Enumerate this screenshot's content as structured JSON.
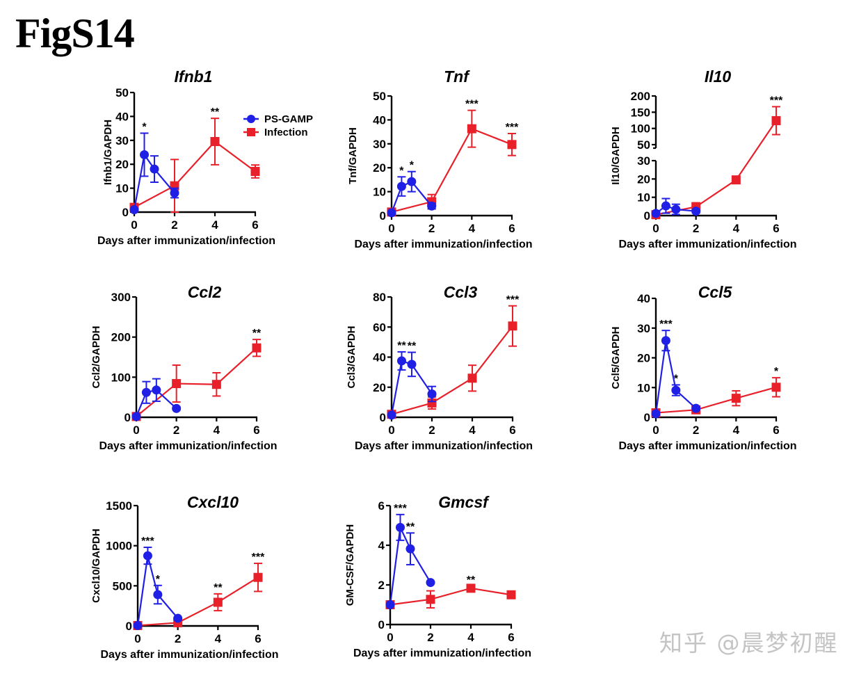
{
  "figure_title": "FigS14",
  "watermark": "知乎 @晨梦初醒",
  "colors": {
    "ps_gamp": "#1f1fe6",
    "infection": "#e8202a",
    "axis": "#000000"
  },
  "legend": {
    "placement": "top-right of first panel",
    "entries": [
      {
        "name": "PS-GAMP",
        "marker": "circle",
        "color": "#1f1fe6"
      },
      {
        "name": "Infection",
        "marker": "square",
        "color": "#e8202a"
      }
    ]
  },
  "chart_data": [
    {
      "type": "line",
      "title": "Ifnb1",
      "xlabel": "Days after immunization/infection",
      "ylabel": "Ifnb1/GAPDH",
      "xlim": [
        0,
        6
      ],
      "ylim": [
        0,
        50
      ],
      "xticks": [
        0,
        2,
        4,
        6
      ],
      "yticks": [
        0,
        10,
        20,
        30,
        40,
        50
      ],
      "grid": false,
      "series": [
        {
          "name": "PS-GAMP",
          "x": [
            0,
            0.5,
            1,
            2
          ],
          "y": [
            1,
            24,
            18,
            8
          ],
          "err": [
            0.5,
            9,
            5.5,
            2
          ],
          "sig": [
            "",
            "*",
            "",
            ""
          ]
        },
        {
          "name": "Infection",
          "x": [
            0,
            2,
            4,
            6
          ],
          "y": [
            2,
            11,
            29.5,
            17
          ],
          "err": [
            0.5,
            11,
            9.7,
            2.7
          ],
          "sig": [
            "",
            "",
            "**",
            ""
          ]
        }
      ]
    },
    {
      "type": "line",
      "title": "Tnf",
      "xlabel": "Days after immunization/infection",
      "ylabel": "Tnf/GAPDH",
      "xlim": [
        0,
        6
      ],
      "ylim": [
        0,
        50
      ],
      "xticks": [
        0,
        2,
        4,
        6
      ],
      "yticks": [
        0,
        10,
        20,
        30,
        40,
        50
      ],
      "grid": false,
      "series": [
        {
          "name": "PS-GAMP",
          "x": [
            0,
            0.5,
            1,
            2
          ],
          "y": [
            1.2,
            12.2,
            14.2,
            4
          ],
          "err": [
            0.5,
            4,
            4.2,
            1.2
          ],
          "sig": [
            "",
            "*",
            "*",
            ""
          ]
        },
        {
          "name": "Infection",
          "x": [
            0,
            2,
            4,
            6
          ],
          "y": [
            1.5,
            5.8,
            36.3,
            29.7
          ],
          "err": [
            0.5,
            3,
            7.7,
            4.6
          ],
          "sig": [
            "",
            "",
            "***",
            "***"
          ]
        }
      ]
    },
    {
      "type": "line",
      "title": "Il10",
      "xlabel": "Days after immunization/infection",
      "ylabel": "Il10/GAPDH",
      "xlim": [
        0,
        6
      ],
      "y_broken_axis": {
        "lower": [
          0,
          30
        ],
        "upper": [
          50,
          200
        ]
      },
      "xticks": [
        0,
        2,
        4,
        6
      ],
      "yticks": [
        0,
        10,
        20,
        30,
        50,
        100,
        150,
        200
      ],
      "grid": false,
      "series": [
        {
          "name": "PS-GAMP",
          "x": [
            0,
            0.5,
            1,
            2
          ],
          "y": [
            1.2,
            5.3,
            3.4,
            2.4
          ],
          "err": [
            0.5,
            4,
            2.8,
            1
          ],
          "sig": [
            "",
            "",
            "",
            ""
          ]
        },
        {
          "name": "Infection",
          "x": [
            0,
            2,
            4,
            6
          ],
          "y": [
            0.5,
            4.8,
            19.5,
            124
          ],
          "err": [
            0.3,
            2.2,
            1,
            43
          ],
          "sig": [
            "",
            "",
            "",
            "***"
          ]
        }
      ]
    },
    {
      "type": "line",
      "title": "Ccl2",
      "xlabel": "Days after immunization/infection",
      "ylabel": "Ccl2/GAPDH",
      "xlim": [
        0,
        6
      ],
      "ylim": [
        0,
        300
      ],
      "xticks": [
        0,
        2,
        4,
        6
      ],
      "yticks": [
        0,
        100,
        200,
        300
      ],
      "grid": false,
      "series": [
        {
          "name": "PS-GAMP",
          "x": [
            0,
            0.5,
            1,
            2
          ],
          "y": [
            2,
            62,
            68,
            22
          ],
          "err": [
            1,
            27,
            28,
            3
          ],
          "sig": [
            "",
            "",
            "",
            ""
          ]
        },
        {
          "name": "Infection",
          "x": [
            0,
            2,
            4,
            6
          ],
          "y": [
            2,
            84,
            82,
            173
          ],
          "err": [
            1,
            46,
            29,
            21
          ],
          "sig": [
            "",
            "",
            "",
            "**"
          ]
        }
      ]
    },
    {
      "type": "line",
      "title": "Ccl3",
      "xlabel": "Days after immunization/infection",
      "ylabel": "Ccl3/GAPDH",
      "xlim": [
        0,
        6
      ],
      "ylim": [
        0,
        80
      ],
      "xticks": [
        0,
        2,
        4,
        6
      ],
      "yticks": [
        0,
        20,
        40,
        60,
        80
      ],
      "grid": false,
      "series": [
        {
          "name": "PS-GAMP",
          "x": [
            0,
            0.5,
            1,
            2
          ],
          "y": [
            1.5,
            37.5,
            35.2,
            15.5
          ],
          "err": [
            0.5,
            6,
            8,
            5
          ],
          "sig": [
            "",
            "**",
            "**",
            ""
          ]
        },
        {
          "name": "Infection",
          "x": [
            0,
            2,
            4,
            6
          ],
          "y": [
            2,
            9.5,
            26,
            60.7
          ],
          "err": [
            0.5,
            4,
            8.6,
            13.4
          ],
          "sig": [
            "",
            "",
            "",
            "***"
          ]
        }
      ]
    },
    {
      "type": "line",
      "title": "Ccl5",
      "xlabel": "Days after immunization/infection",
      "ylabel": "Ccl5/GAPDH",
      "xlim": [
        0,
        6
      ],
      "ylim": [
        0,
        40
      ],
      "xticks": [
        0,
        2,
        4,
        6
      ],
      "yticks": [
        0,
        10,
        20,
        30,
        40
      ],
      "grid": false,
      "series": [
        {
          "name": "PS-GAMP",
          "x": [
            0,
            0.5,
            1,
            2
          ],
          "y": [
            1.2,
            25.8,
            9.1,
            3
          ],
          "err": [
            0.5,
            3.4,
            1.8,
            0.5
          ],
          "sig": [
            "",
            "***",
            "*",
            ""
          ]
        },
        {
          "name": "Infection",
          "x": [
            0,
            2,
            4,
            6
          ],
          "y": [
            1.5,
            2.5,
            6.4,
            10.1
          ],
          "err": [
            0.5,
            0.5,
            2.5,
            3.2
          ],
          "sig": [
            "",
            "",
            "",
            "*"
          ]
        }
      ]
    },
    {
      "type": "line",
      "title": "Cxcl10",
      "xlabel": "Days after immunization/infection",
      "ylabel": "Cxcl10/GAPDH",
      "xlim": [
        0,
        6
      ],
      "ylim": [
        0,
        1500
      ],
      "xticks": [
        0,
        2,
        4,
        6
      ],
      "yticks": [
        0,
        500,
        1000,
        1500
      ],
      "grid": false,
      "series": [
        {
          "name": "PS-GAMP",
          "x": [
            0,
            0.5,
            1,
            2
          ],
          "y": [
            5,
            875,
            390,
            95
          ],
          "err": [
            3,
            105,
            115,
            10
          ],
          "sig": [
            "",
            "***",
            "*",
            ""
          ]
        },
        {
          "name": "Infection",
          "x": [
            0,
            2,
            4,
            6
          ],
          "y": [
            5,
            40,
            295,
            605
          ],
          "err": [
            3,
            10,
            105,
            175
          ],
          "sig": [
            "",
            "",
            "**",
            "***"
          ]
        }
      ]
    },
    {
      "type": "line",
      "title": "Gmcsf",
      "xlabel": "Days after immunization/infection",
      "ylabel": "GM-CSF/GAPDH",
      "xlim": [
        0,
        6
      ],
      "ylim": [
        0,
        6
      ],
      "xticks": [
        0,
        2,
        4,
        6
      ],
      "yticks": [
        0,
        2,
        4,
        6
      ],
      "grid": false,
      "series": [
        {
          "name": "PS-GAMP",
          "x": [
            0,
            0.5,
            1,
            2
          ],
          "y": [
            1,
            4.9,
            3.82,
            2.12
          ],
          "err": [
            0.05,
            0.65,
            0.8,
            0.05
          ],
          "sig": [
            "",
            "***",
            "**",
            ""
          ]
        },
        {
          "name": "Infection",
          "x": [
            0,
            2,
            4,
            6
          ],
          "y": [
            1,
            1.27,
            1.83,
            1.5
          ],
          "err": [
            0.05,
            0.43,
            0.1,
            0.15
          ],
          "sig": [
            "",
            "",
            "**",
            ""
          ]
        }
      ]
    }
  ]
}
